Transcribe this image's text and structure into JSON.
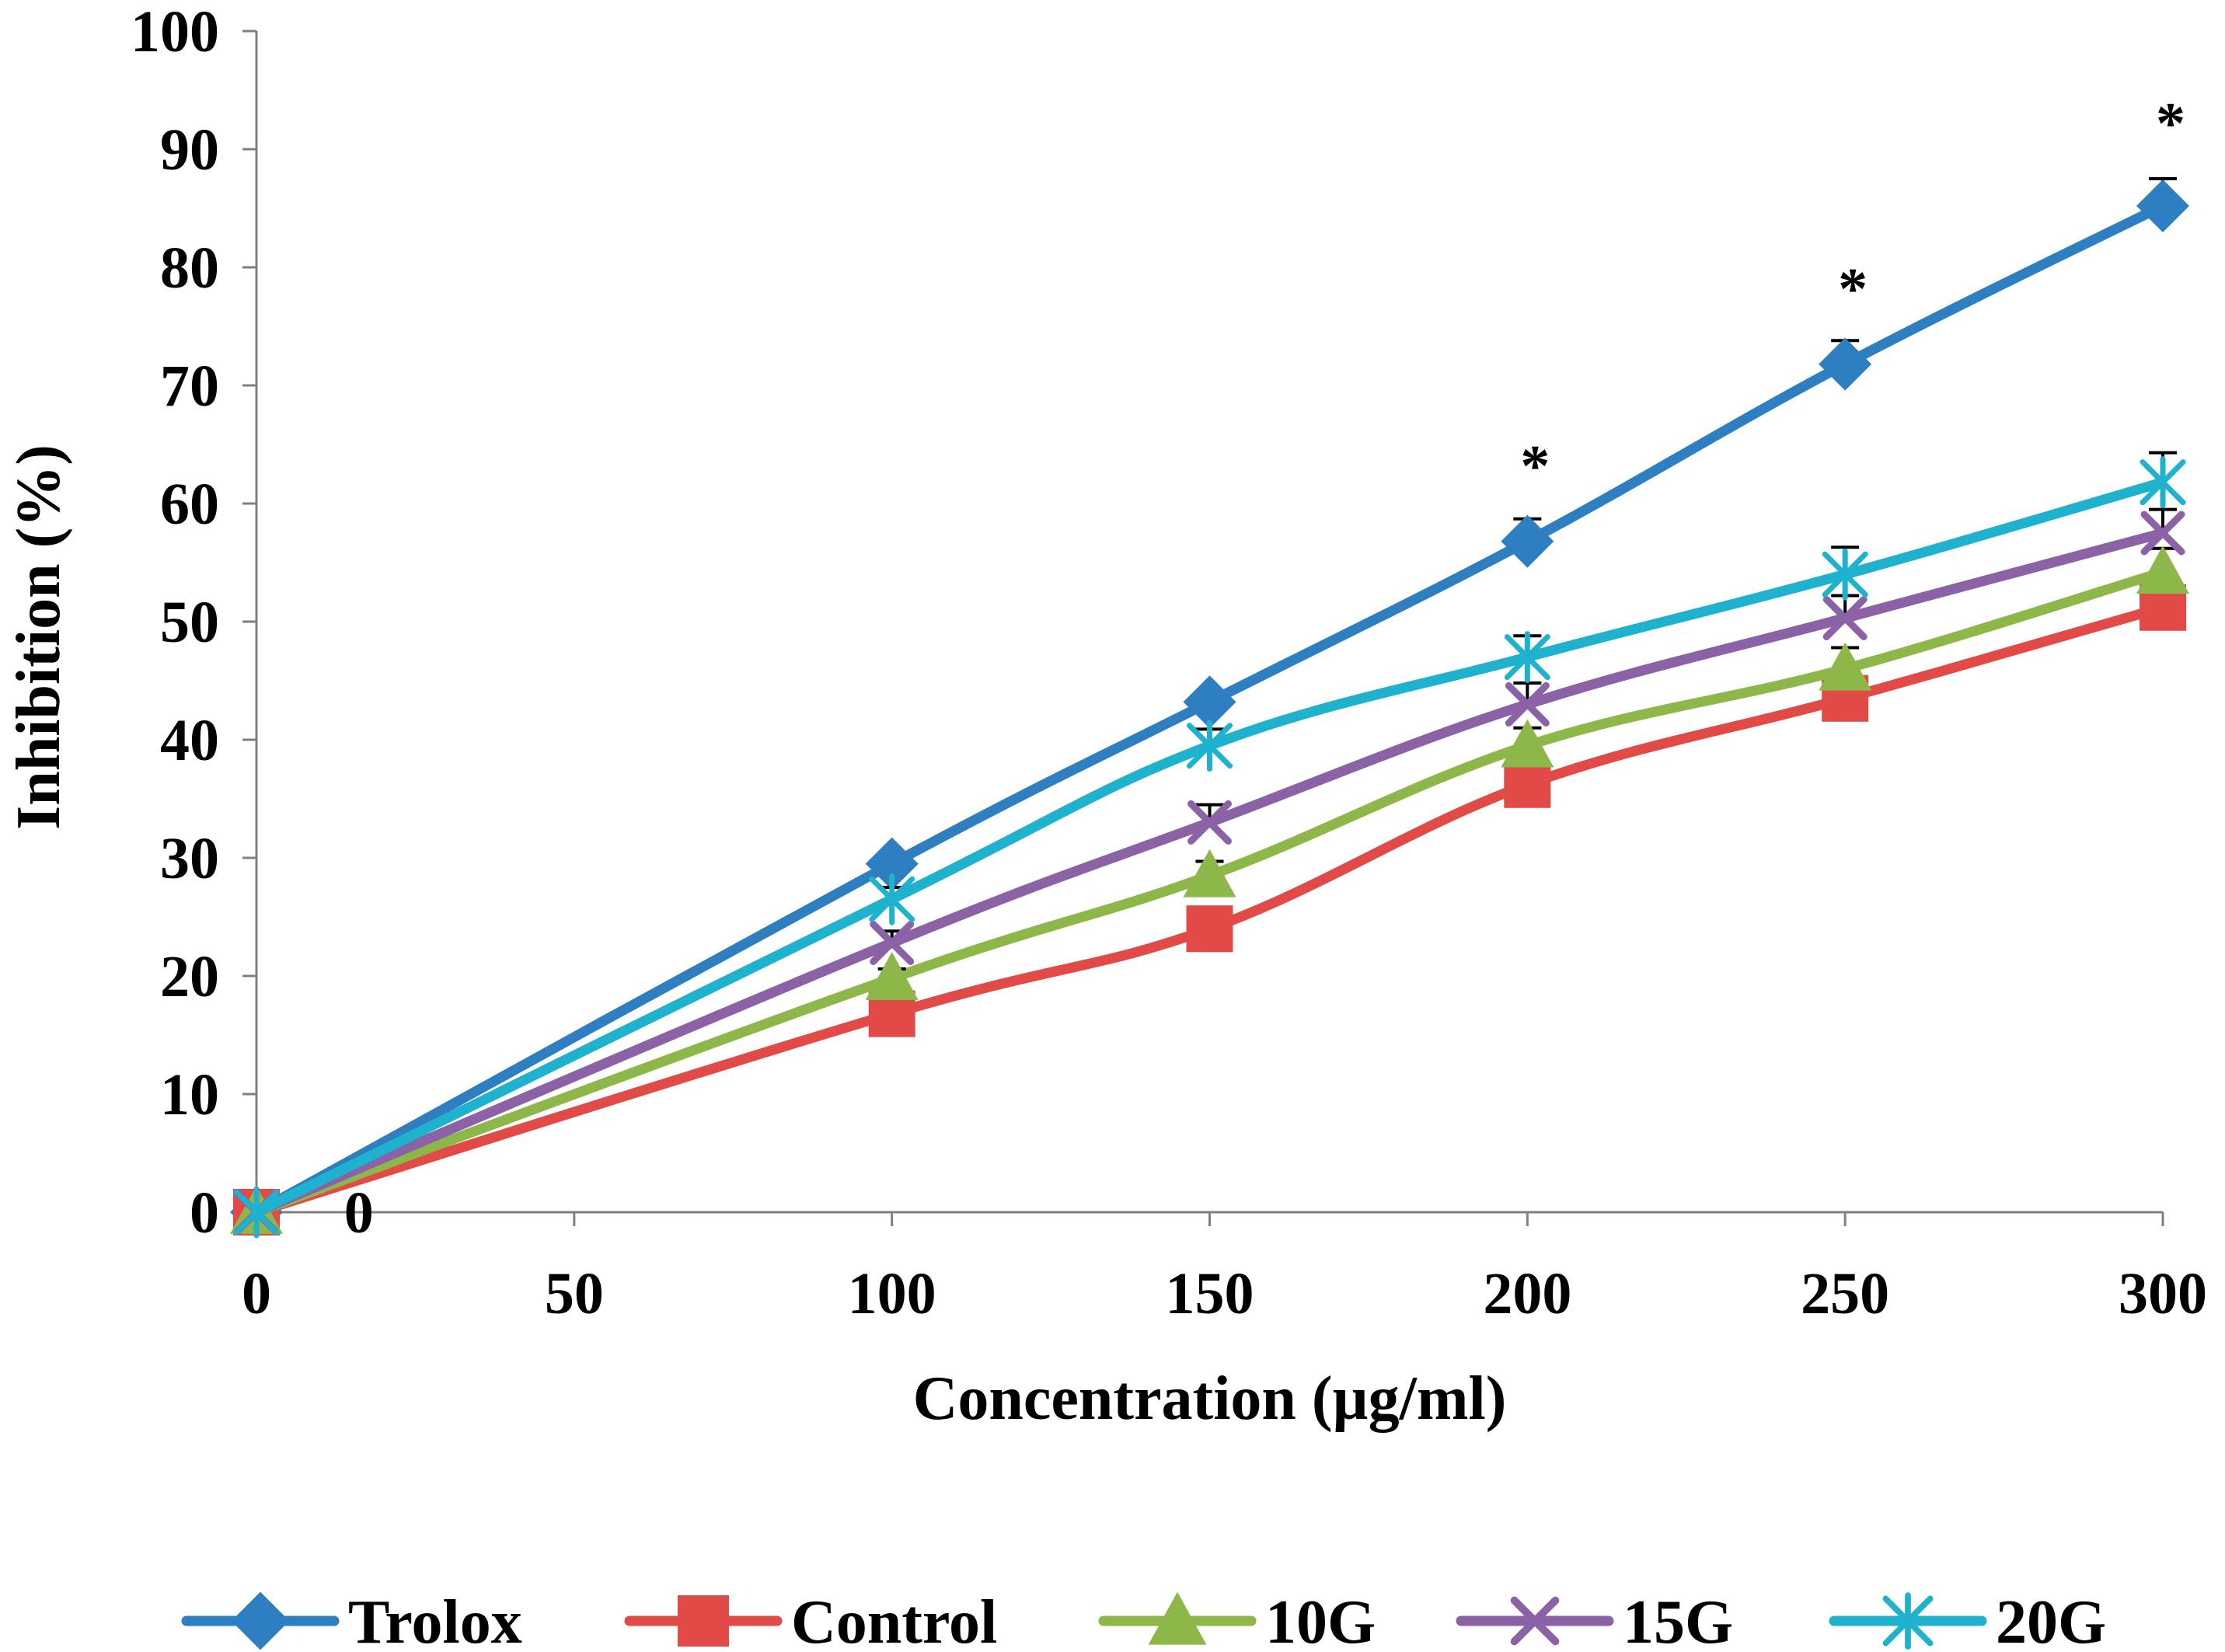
{
  "chart_data": {
    "type": "line",
    "title": "",
    "xlabel": "Concentration (µg/ml)",
    "ylabel": "Inhibition (%)",
    "x": [
      0,
      100,
      150,
      200,
      250,
      300
    ],
    "xticks": [
      0,
      50,
      100,
      150,
      200,
      250,
      300
    ],
    "yticks": [
      0,
      10,
      20,
      30,
      40,
      50,
      60,
      70,
      80,
      90,
      100
    ],
    "xlim": [
      0,
      300
    ],
    "ylim": [
      0,
      100
    ],
    "grid": false,
    "legend_position": "bottom",
    "series": [
      {
        "name": "Trolox",
        "color": "#2E7EC2",
        "marker": "diamond",
        "values": [
          0,
          29.5,
          43.2,
          56.8,
          71.8,
          85.2
        ],
        "errors": [
          0,
          0.8,
          0.9,
          1.9,
          2.0,
          2.3
        ]
      },
      {
        "name": "Control",
        "color": "#E14A47",
        "marker": "square",
        "values": [
          0,
          16.8,
          24.0,
          36.2,
          43.5,
          51.2
        ],
        "errors": [
          0,
          0.8,
          1.0,
          1.3,
          1.4,
          1.5
        ]
      },
      {
        "name": "10G",
        "color": "#8DB849",
        "marker": "triangle",
        "values": [
          0,
          19.8,
          28.5,
          39.5,
          46.0,
          54.2
        ],
        "errors": [
          0,
          0.8,
          1.2,
          1.5,
          1.8,
          2.0
        ]
      },
      {
        "name": "15G",
        "color": "#8B62A6",
        "marker": "x",
        "values": [
          0,
          22.8,
          33.0,
          43.0,
          50.3,
          57.5
        ],
        "errors": [
          0,
          1.0,
          1.5,
          1.8,
          1.9,
          2.0
        ]
      },
      {
        "name": "20G",
        "color": "#1EB2CE",
        "marker": "asterisk",
        "values": [
          0,
          26.5,
          39.5,
          47.0,
          54.0,
          61.8
        ],
        "errors": [
          0,
          1.0,
          1.4,
          1.8,
          2.3,
          2.5
        ]
      }
    ],
    "annotations": [
      {
        "text": "*",
        "x": 200,
        "y": 63.5
      },
      {
        "text": "*",
        "x": 250,
        "y": 78.5
      },
      {
        "text": "*",
        "x": 300,
        "y": 92.5
      },
      {
        "text": "0",
        "x": 10,
        "y": 0
      }
    ]
  }
}
